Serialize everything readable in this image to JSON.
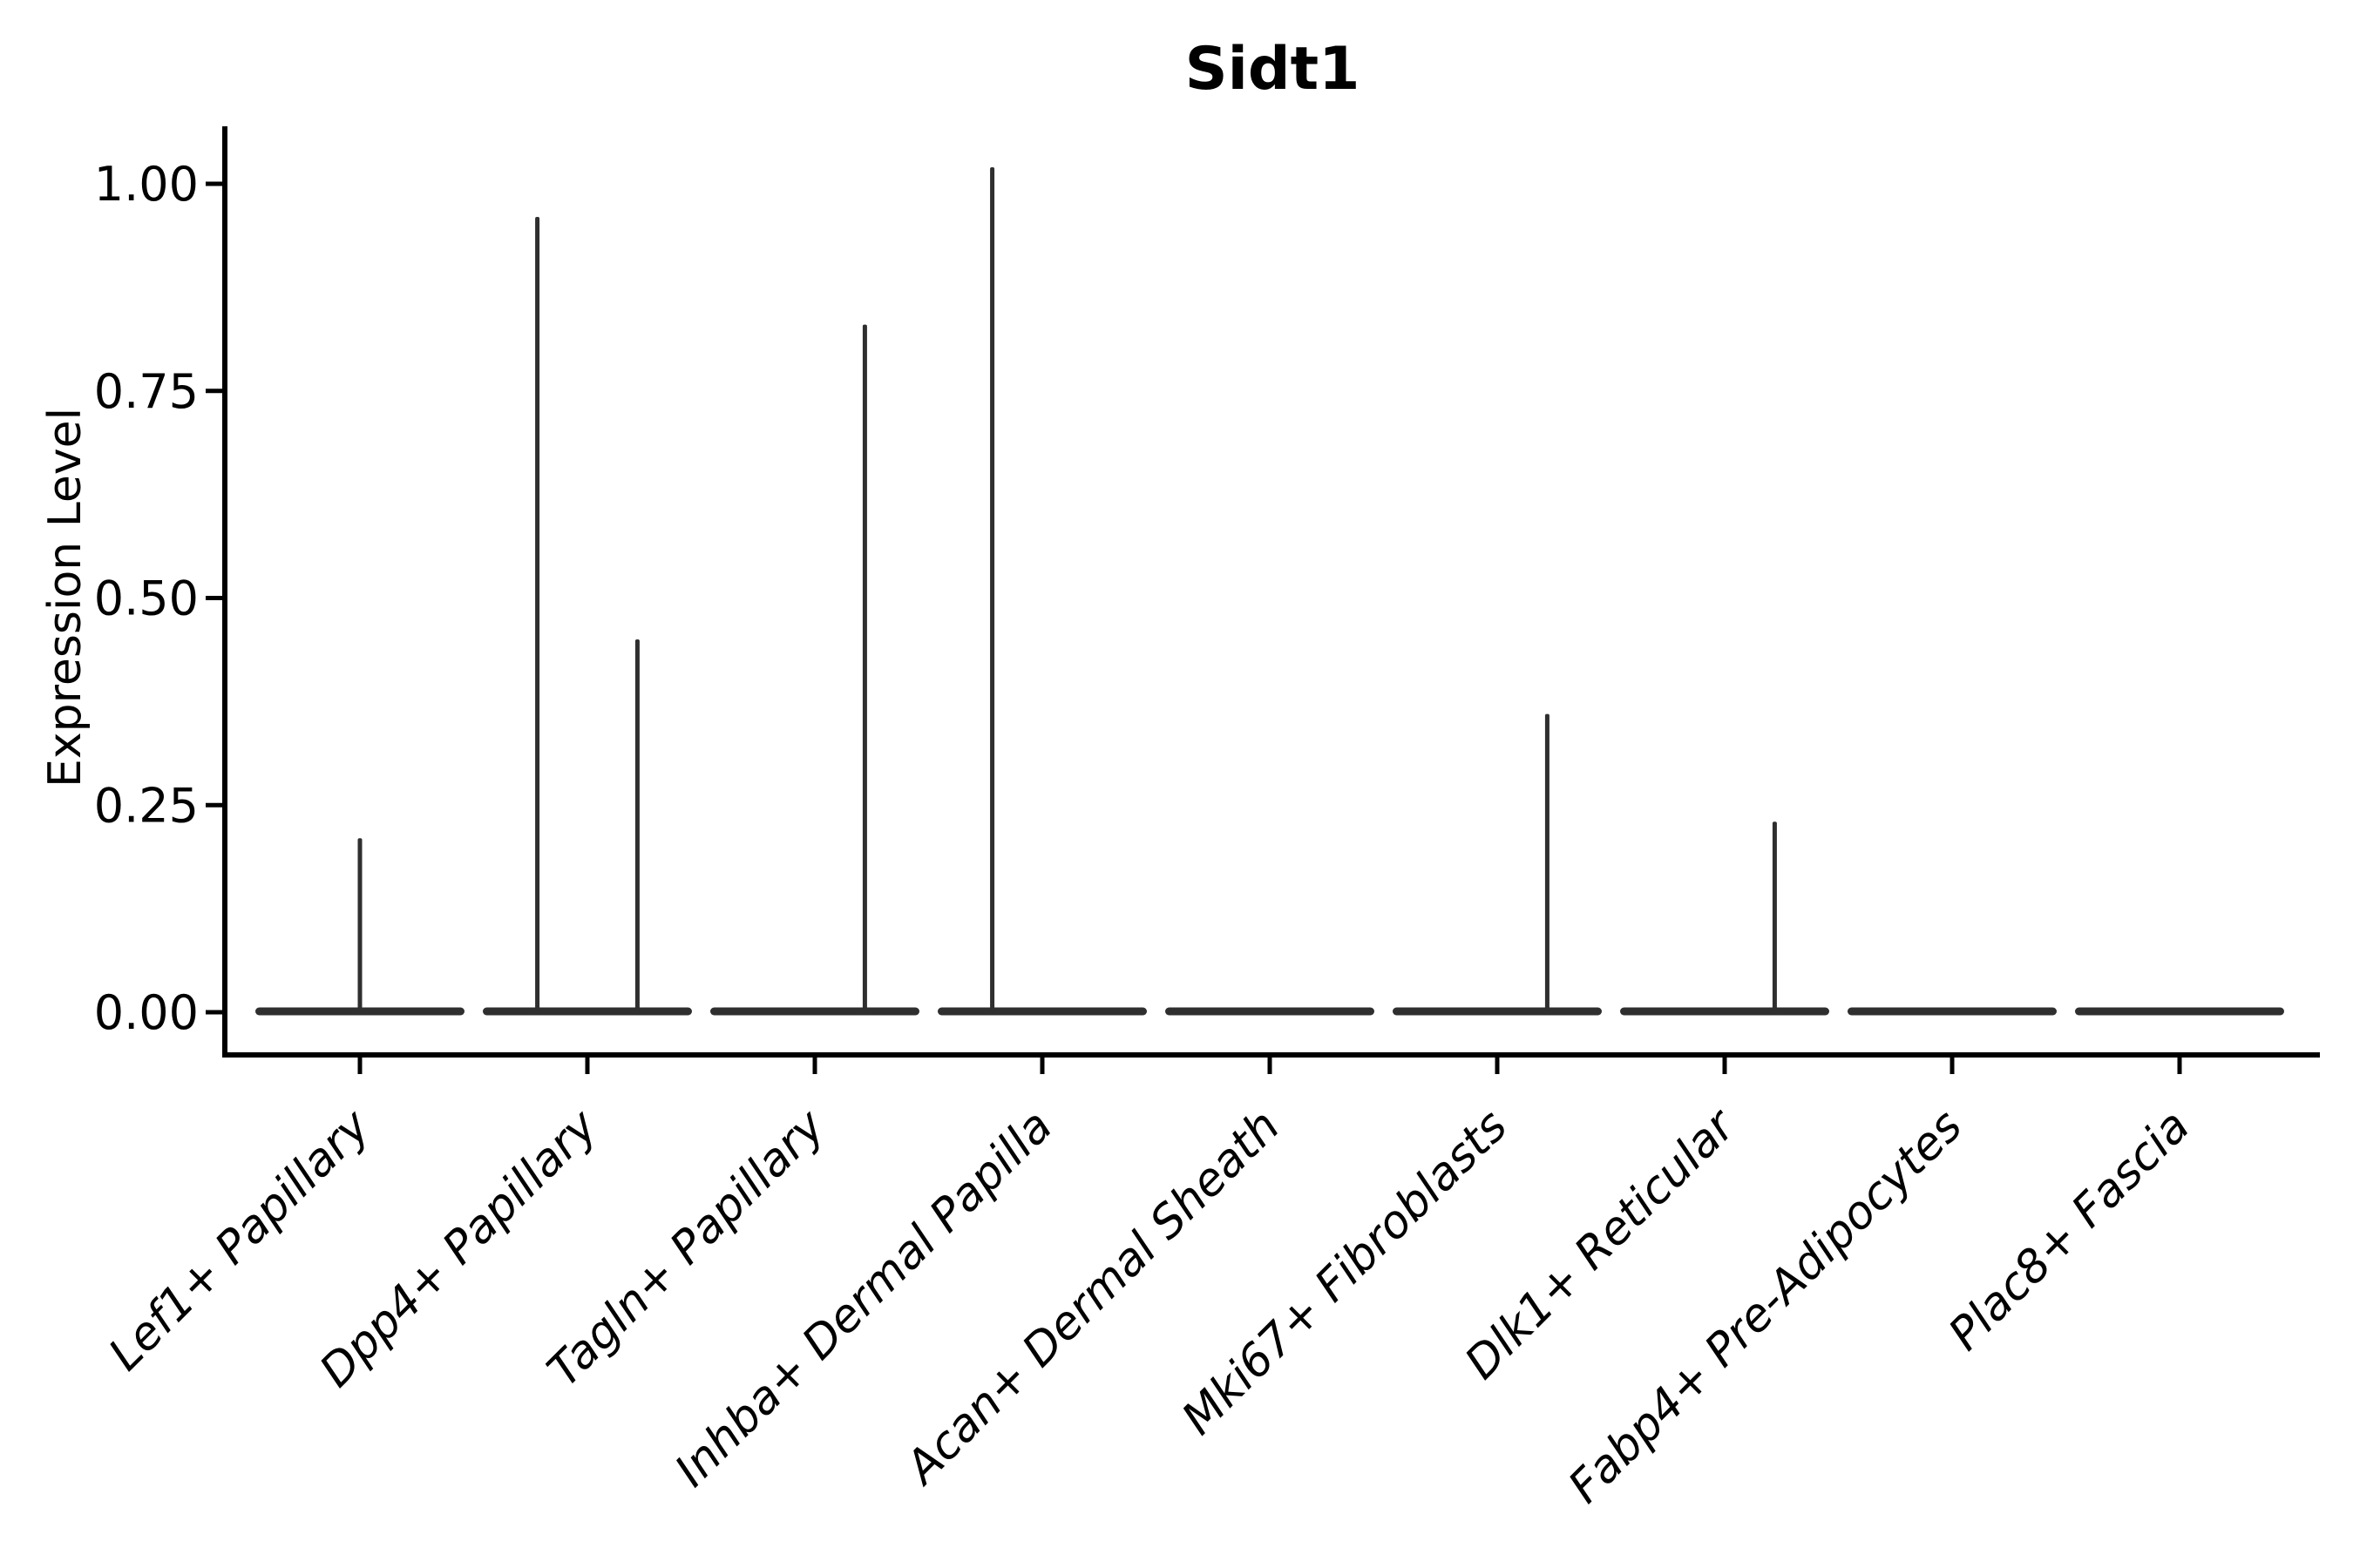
{
  "figure": {
    "background": "#ffffff"
  },
  "chart_data": {
    "type": "violin",
    "title": "Sidt1",
    "xlabel": "",
    "ylabel": "Expression Level",
    "ylim": [
      0,
      1.07
    ],
    "grid": false,
    "legend": "none",
    "y_ticks": [
      {
        "value": 0.0,
        "label": "0.00"
      },
      {
        "value": 0.25,
        "label": "0.25"
      },
      {
        "value": 0.5,
        "label": "0.50"
      },
      {
        "value": 0.75,
        "label": "0.75"
      },
      {
        "value": 1.0,
        "label": "1.00"
      }
    ],
    "categories": [
      "Lef1+ Papillary",
      "Dpp4+ Papillary",
      "Tagln+ Papillary",
      "Inhba+ Dermal Papilla",
      "Acan+ Dermal Sheath",
      "Mki67+ Fibroblasts",
      "Dlk1+ Reticular",
      "Fabp4+ Pre-Adipocytes",
      "Plac8+ Fascia"
    ],
    "violins": [
      {
        "category": "Lef1+ Papillary",
        "zero_mass": true,
        "spikes": [
          {
            "offset": 0.0,
            "peak": 0.21
          }
        ]
      },
      {
        "category": "Dpp4+ Papillary",
        "zero_mass": true,
        "spikes": [
          {
            "offset": -0.22,
            "peak": 0.96
          },
          {
            "offset": 0.22,
            "peak": 0.45
          }
        ]
      },
      {
        "category": "Tagln+ Papillary",
        "zero_mass": true,
        "spikes": [
          {
            "offset": 0.22,
            "peak": 0.83
          }
        ]
      },
      {
        "category": "Inhba+ Dermal Papilla",
        "zero_mass": true,
        "spikes": [
          {
            "offset": -0.22,
            "peak": 1.02
          }
        ]
      },
      {
        "category": "Acan+ Dermal Sheath",
        "zero_mass": true,
        "spikes": []
      },
      {
        "category": "Mki67+ Fibroblasts",
        "zero_mass": true,
        "spikes": [
          {
            "offset": 0.22,
            "peak": 0.36
          }
        ]
      },
      {
        "category": "Dlk1+ Reticular",
        "zero_mass": true,
        "spikes": [
          {
            "offset": 0.22,
            "peak": 0.23
          }
        ]
      },
      {
        "category": "Fabp4+ Pre-Adipocytes",
        "zero_mass": true,
        "spikes": []
      },
      {
        "category": "Plac8+ Fascia",
        "zero_mass": true,
        "spikes": []
      }
    ],
    "colors": {
      "violin": "#2f2f2f",
      "axis": "#000000",
      "text": "#000000",
      "background": "#ffffff"
    }
  }
}
